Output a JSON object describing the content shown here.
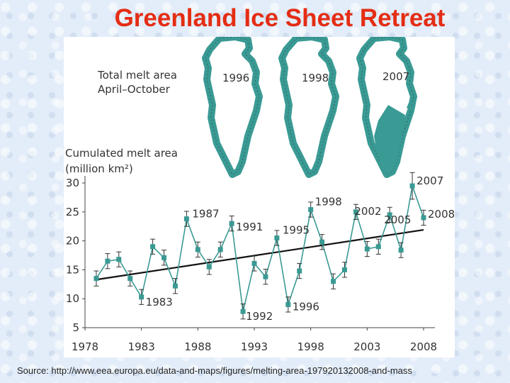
{
  "title": "Greenland Ice Sheet Retreat",
  "source": "Source: http://www.eea.europa.eu/data-and-maps/figures/melting-area-197920132008-and-mass",
  "maps": {
    "caption_line1": "Total melt area",
    "caption_line2": "April–October",
    "items": [
      {
        "year": "1996"
      },
      {
        "year": "1998"
      },
      {
        "year": "2007"
      }
    ]
  },
  "colors": {
    "series": "#3a9a94",
    "trend": "#111111",
    "title": "#e42d14"
  },
  "chart_data": {
    "type": "line",
    "title": "Greenland Ice Sheet Retreat",
    "ylabel_line1": "Cumulated melt area",
    "ylabel_line2": "(million km²)",
    "xlabel": "",
    "xlim": [
      1978,
      2008
    ],
    "ylim": [
      5,
      30
    ],
    "xticks": [
      "1978",
      "1983",
      "1988",
      "1993",
      "1998",
      "2003",
      "2008"
    ],
    "yticks": [
      "5",
      "10",
      "15",
      "20",
      "25",
      "30"
    ],
    "series": [
      {
        "name": "Cumulated melt area",
        "x": [
          1979,
          1980,
          1981,
          1982,
          1983,
          1984,
          1985,
          1986,
          1987,
          1988,
          1989,
          1990,
          1991,
          1992,
          1993,
          1994,
          1995,
          1996,
          1997,
          1998,
          1999,
          2000,
          2001,
          2002,
          2003,
          2004,
          2005,
          2006,
          2007,
          2008
        ],
        "y": [
          13.5,
          16.5,
          16.8,
          13.5,
          10.3,
          19.0,
          17.1,
          12.2,
          23.8,
          18.5,
          15.5,
          18.5,
          23.0,
          7.8,
          16.1,
          13.8,
          20.5,
          9.0,
          14.8,
          25.4,
          19.8,
          13.0,
          15.0,
          25.0,
          18.6,
          19.0,
          24.5,
          18.4,
          29.5,
          24.0
        ],
        "err": [
          1.3,
          1.3,
          1.3,
          1.3,
          1.3,
          1.3,
          1.3,
          1.3,
          1.3,
          1.3,
          1.3,
          1.3,
          1.3,
          1.3,
          1.3,
          1.3,
          1.3,
          1.3,
          1.3,
          1.3,
          1.3,
          1.3,
          1.3,
          1.3,
          1.3,
          1.3,
          1.3,
          1.3,
          2.3,
          1.3
        ]
      }
    ],
    "trend": {
      "x": [
        1979,
        2008
      ],
      "y": [
        13.3,
        21.9
      ]
    },
    "annotations": [
      {
        "text": "1983",
        "x": 1983,
        "y": 10.3
      },
      {
        "text": "1987",
        "x": 1987,
        "y": 23.8
      },
      {
        "text": "1991",
        "x": 1991,
        "y": 23.0
      },
      {
        "text": "1992",
        "x": 1992,
        "y": 7.8
      },
      {
        "text": "1995",
        "x": 1995,
        "y": 20.5
      },
      {
        "text": "1996",
        "x": 1996,
        "y": 9.0
      },
      {
        "text": "1998",
        "x": 1998,
        "y": 25.4
      },
      {
        "text": "2002",
        "x": 2002,
        "y": 25.0
      },
      {
        "text": "2005",
        "x": 2005,
        "y": 24.5
      },
      {
        "text": "2007",
        "x": 2007,
        "y": 29.5
      },
      {
        "text": "2008",
        "x": 2008,
        "y": 24.0
      }
    ]
  }
}
